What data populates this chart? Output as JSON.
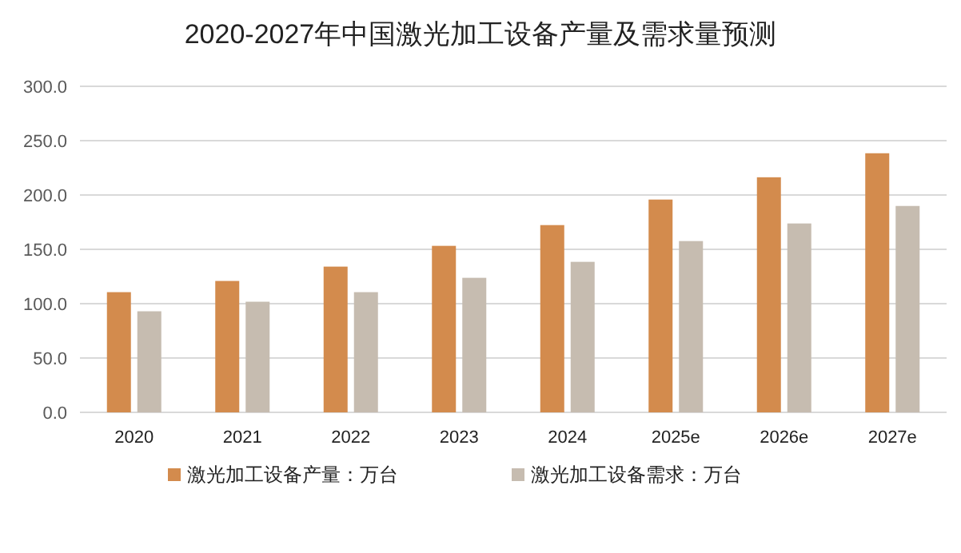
{
  "chart_data": {
    "type": "bar",
    "title": "2020-2027年中国激光加工设备产量及需求量预测",
    "categories": [
      "2020",
      "2021",
      "2022",
      "2023",
      "2024",
      "2025e",
      "2026e",
      "2027e"
    ],
    "series": [
      {
        "name": "激光加工设备产量：万台",
        "color": "#d38b4d",
        "values": [
          110.6,
          120.9,
          134.1,
          153.2,
          172.3,
          195.8,
          216.3,
          238.4
        ]
      },
      {
        "name": "激光加工设备需求：万台",
        "color": "#c6bcb0",
        "values": [
          93.0,
          101.8,
          110.6,
          123.8,
          138.5,
          157.6,
          173.8,
          189.9
        ]
      }
    ],
    "ylim": [
      0,
      300
    ],
    "yticks": [
      {
        "value": 0,
        "label": "0.0"
      },
      {
        "value": 50,
        "label": "50.0"
      },
      {
        "value": 100,
        "label": "100.0"
      },
      {
        "value": 150,
        "label": "150.0"
      },
      {
        "value": 200,
        "label": "200.0"
      },
      {
        "value": 250,
        "label": "250.0"
      },
      {
        "value": 300,
        "label": "300.0"
      }
    ],
    "grid": "y",
    "legend": "bottom"
  }
}
